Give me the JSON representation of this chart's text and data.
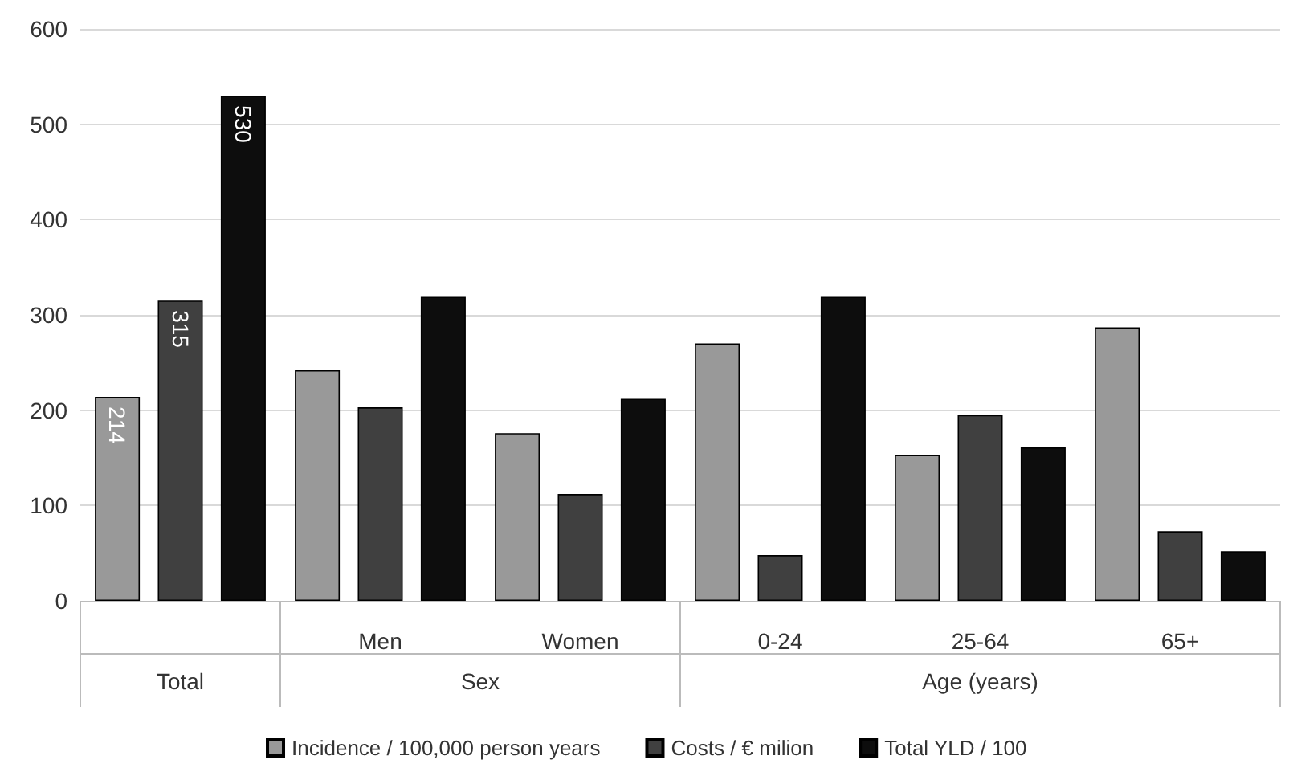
{
  "chart_data": {
    "type": "bar",
    "categories": [
      null,
      "Men",
      "Women",
      "0-24",
      "25-64",
      "65+"
    ],
    "annotations": [
      "Total",
      "Sex",
      "Age (years)"
    ],
    "series": [
      {
        "name": "Incidence / 100,000 person years",
        "color": "#999999",
        "values": [
          214,
          242,
          176,
          270,
          153,
          287
        ],
        "value_labels": [
          "214",
          null,
          null,
          null,
          null,
          null
        ]
      },
      {
        "name": "Costs / € milion",
        "color": "#404040",
        "values": [
          315,
          203,
          112,
          48,
          195,
          73
        ],
        "value_labels": [
          "315",
          null,
          null,
          null,
          null,
          null
        ]
      },
      {
        "name": "Total YLD / 100",
        "color": "#0d0d0d",
        "values": [
          530,
          319,
          212,
          319,
          161,
          52
        ],
        "value_labels": [
          "530",
          null,
          null,
          null,
          null,
          null
        ]
      }
    ],
    "ylim": [
      0,
      600
    ],
    "yticks": [
      0,
      100,
      200,
      300,
      400,
      500,
      600
    ],
    "grid": "y",
    "legend": "bottom"
  }
}
